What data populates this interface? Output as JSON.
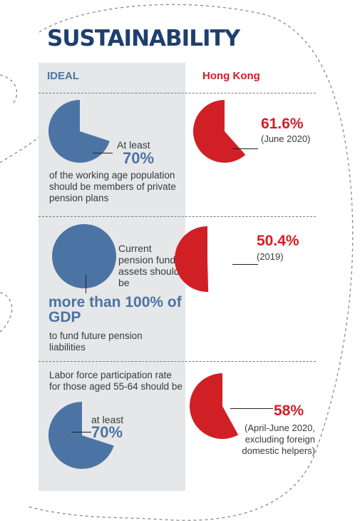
{
  "title": "SUSTAINABILITY",
  "columns": {
    "ideal": "IDEAL",
    "hk": "Hong Kong"
  },
  "colors": {
    "navy": "#1e3f6e",
    "blue": "#4b74a4",
    "red": "#d11f26",
    "panel": "#e6e7e8"
  },
  "rows": [
    {
      "ideal_pre": "At least",
      "ideal_value": "70%",
      "ideal_text": "of the working age population should be members of private pension plans",
      "hk_value": "61.6%",
      "hk_note": "(June 2020)"
    },
    {
      "ideal_pre": "Current pension fund assets should be",
      "ideal_value": "more than 100% of GDP",
      "ideal_text": "to fund future pension liabilities",
      "hk_value": "50.4%",
      "hk_note": "(2019)"
    },
    {
      "ideal_pre": "Labor force participation rate for those aged 55-64 should be",
      "ideal_value": "70%",
      "ideal_sub": "at least",
      "hk_value": "58%",
      "hk_note": "(April-June 2020, excluding foreign domestic helpers)"
    }
  ],
  "chart_data": [
    {
      "type": "pie",
      "metric": "working age population in private pension plans",
      "ideal_pct": 70,
      "hong_kong_pct": 61.6,
      "hong_kong_period": "June 2020"
    },
    {
      "type": "pie",
      "metric": "pension fund assets as % of GDP",
      "ideal_pct": 100,
      "hong_kong_pct": 50.4,
      "hong_kong_period": "2019"
    },
    {
      "type": "pie",
      "metric": "labor force participation rate aged 55-64",
      "ideal_pct": 70,
      "hong_kong_pct": 58,
      "hong_kong_period": "April-June 2020"
    }
  ]
}
